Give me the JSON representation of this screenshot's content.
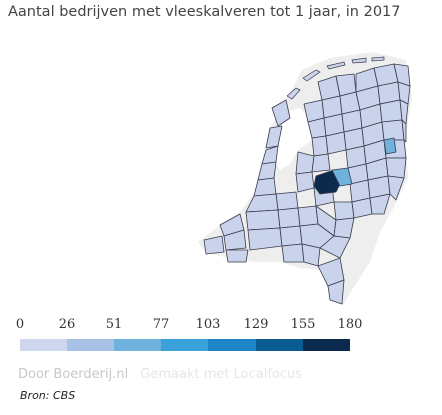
{
  "title": "Aantal bedrijven met vleeskalveren tot 1 jaar, in 2017",
  "legend": {
    "ticks": [
      "0",
      "26",
      "51",
      "77",
      "103",
      "129",
      "155",
      "180"
    ],
    "colors": [
      "#cdd6ed",
      "#a6c3e6",
      "#6fb2de",
      "#3aa1da",
      "#1e84c6",
      "#0a5a94",
      "#0a2a4e"
    ]
  },
  "credits": {
    "by": "Door Boerderij.nl",
    "made_with": "Gemaakt met Localfocus"
  },
  "source": "Bron: CBS",
  "colors": {
    "land": "#eeeeee",
    "region_base": "#c9d3ec",
    "region_border": "#3a3a4a",
    "highlight_dark": "#0a2a4e",
    "highlight_mid": "#6fb2de"
  }
}
